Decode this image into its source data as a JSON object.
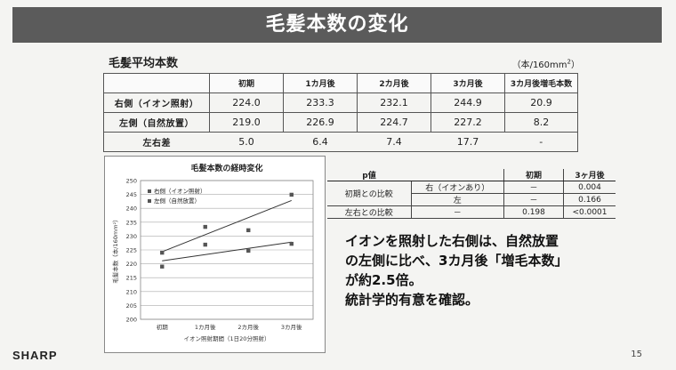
{
  "slide": {
    "title": "毛髪本数の変化",
    "section_label": "毛髪平均本数",
    "unit_prefix": "（本/160mm",
    "unit_sup": "2",
    "unit_suffix": "）",
    "logo": "SHARP",
    "page_number": "15"
  },
  "table": {
    "headers": [
      "",
      "初期",
      "1カ月後",
      "2カ月後",
      "3カ月後",
      "3カ月後増毛本数"
    ],
    "rows": [
      {
        "label": "右側（イオン照射）",
        "cells": [
          "224.0",
          "233.3",
          "232.1",
          "244.9",
          "20.9"
        ]
      },
      {
        "label": "左側（自然放置）",
        "cells": [
          "219.0",
          "226.9",
          "224.7",
          "227.2",
          "8.2"
        ]
      },
      {
        "label": "左右差",
        "cells": [
          "5.0",
          "6.4",
          "7.4",
          "17.7",
          "-"
        ]
      }
    ]
  },
  "chart_data": {
    "type": "scatter",
    "title": "毛髪本数の経時変化",
    "xlabel": "イオン照射期間（1日20分照射）",
    "ylabel": "毛髪本数（本/160mm²）",
    "categories": [
      "初期",
      "1カ月後",
      "2カ月後",
      "3カ月後"
    ],
    "ylim": [
      200,
      250
    ],
    "yticks": [
      "200",
      "205",
      "210",
      "215",
      "220",
      "225",
      "230",
      "235",
      "240",
      "245",
      "250"
    ],
    "series": [
      {
        "name": "右側（イオン照射）",
        "values": [
          224.0,
          233.3,
          232.1,
          244.9
        ],
        "trendline": true
      },
      {
        "name": "左側（自然放置）",
        "values": [
          219.0,
          226.9,
          224.7,
          227.2
        ],
        "trendline": true
      }
    ],
    "legend": "top-left",
    "grid": true
  },
  "pvalues": {
    "header": [
      "p値",
      "",
      "初期",
      "3ヶ月後"
    ],
    "rows": [
      {
        "group": "初期との比較",
        "sub": "右（イオンあり）",
        "initial": "－",
        "m3": "0.004"
      },
      {
        "group": "",
        "sub": "左",
        "initial": "－",
        "m3": "0.166"
      },
      {
        "group": "左右との比較",
        "sub": "－",
        "initial": "0.198",
        "m3": "<0.0001"
      }
    ]
  },
  "message": {
    "line1": "イオンを照射した右側は、自然放置",
    "line2": "の左側に比べ、3カ月後「増毛本数」",
    "line3": "が約2.5倍。",
    "line4": "統計学的有意を確認。"
  }
}
